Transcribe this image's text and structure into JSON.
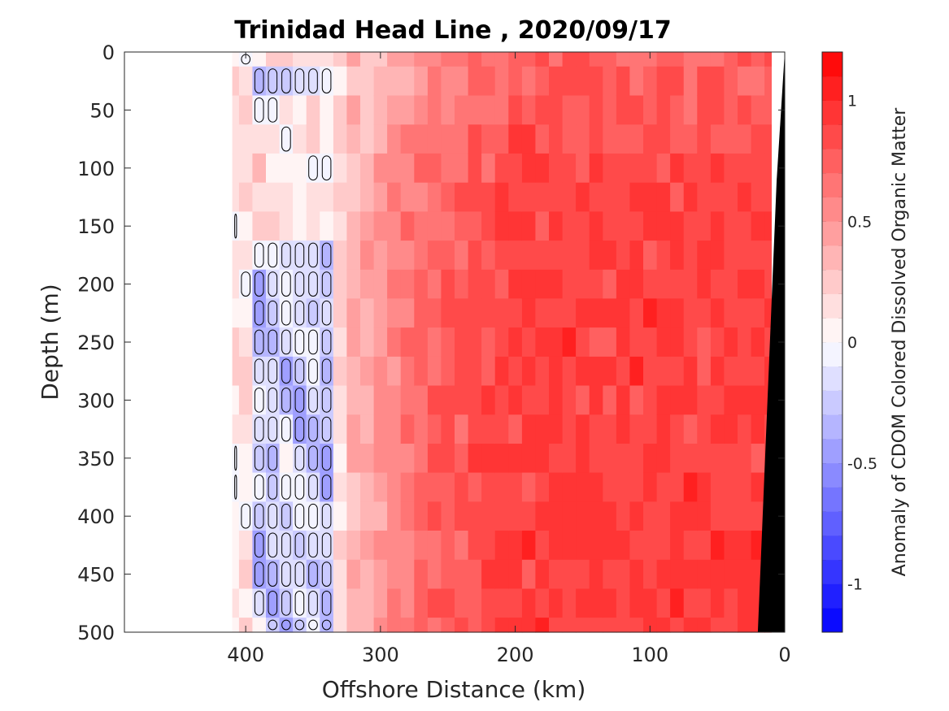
{
  "chart_data": {
    "type": "heatmap",
    "title": "Trinidad Head Line , 2020/09/17",
    "xlabel": "Offshore Distance (km)",
    "ylabel": "Depth (m)",
    "colorbar_label": "Anomaly of CDOM Colored Dissolved Organic Matter",
    "x_reversed": true,
    "y_reversed": true,
    "xlim": [
      490,
      0
    ],
    "ylim": [
      0,
      500
    ],
    "clim": [
      -1.2,
      1.2
    ],
    "x_ticks": [
      400,
      300,
      200,
      100,
      0
    ],
    "x_tick_labels": [
      "400",
      "300",
      "200",
      "100",
      "0"
    ],
    "y_ticks": [
      0,
      50,
      100,
      150,
      200,
      250,
      300,
      350,
      400,
      450,
      500
    ],
    "y_tick_labels": [
      "0",
      "50",
      "100",
      "150",
      "200",
      "250",
      "300",
      "350",
      "400",
      "450",
      "500"
    ],
    "colorbar_ticks": [
      1,
      0.5,
      0,
      -0.5,
      -1
    ],
    "colorbar_tick_labels": [
      "1",
      "0.5",
      "0",
      "-0.5",
      "-1"
    ],
    "colorbar_levels": 24,
    "colormap": {
      "low": "#0000ff",
      "mid": "#ffffff",
      "high": "#ff0000"
    },
    "zero_contour": true,
    "bathymetry_color": "#000000",
    "data_extent_x": [
      410,
      10
    ],
    "distance_km": [
      410,
      400,
      390,
      380,
      370,
      360,
      350,
      340,
      330,
      320,
      310,
      300,
      290,
      280,
      270,
      260,
      250,
      240,
      230,
      220,
      210,
      200,
      190,
      180,
      170,
      160,
      150,
      140,
      130,
      120,
      110,
      100,
      90,
      80,
      70,
      60,
      50,
      40,
      30,
      20,
      10
    ],
    "depth_m": [
      0,
      25,
      50,
      75,
      100,
      125,
      150,
      175,
      200,
      225,
      250,
      275,
      300,
      325,
      350,
      375,
      400,
      425,
      450,
      475,
      500
    ],
    "bottom_depth_m": [
      [
        0,
        500
      ],
      [
        25,
        500
      ],
      [
        45,
        0
      ]
    ]
  }
}
